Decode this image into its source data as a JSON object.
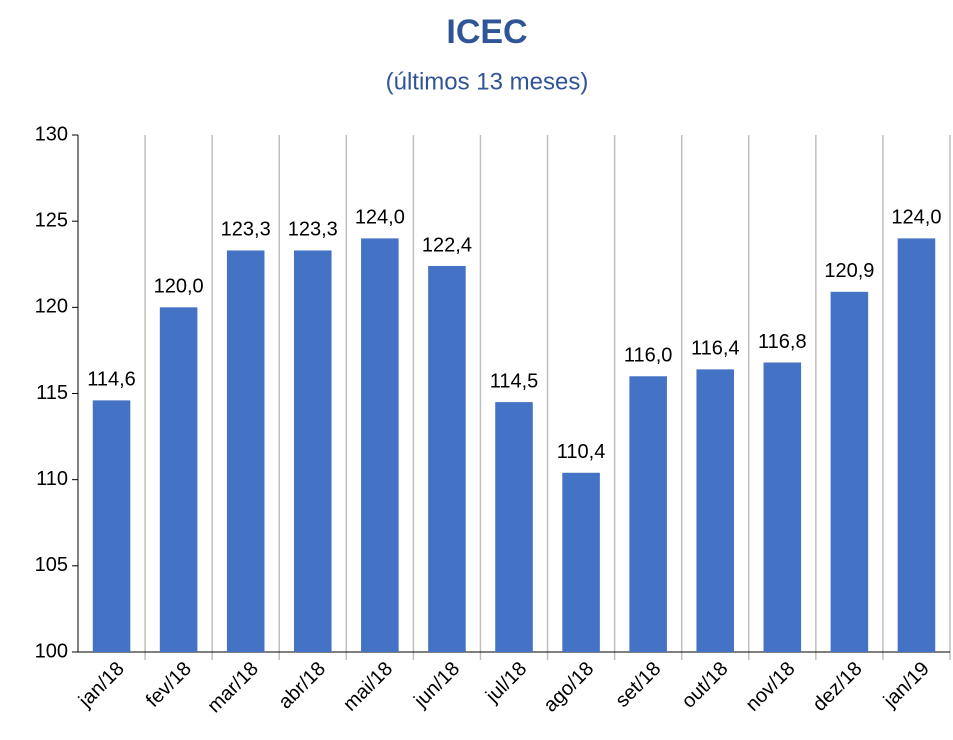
{
  "chart_data": {
    "type": "bar",
    "title": "ICEC",
    "subtitle": "(últimos 13 meses)",
    "categories": [
      "jan/18",
      "fev/18",
      "mar/18",
      "abr/18",
      "mai/18",
      "jun/18",
      "jul/18",
      "ago/18",
      "set/18",
      "out/18",
      "nov/18",
      "dez/18",
      "jan/19"
    ],
    "values": [
      114.6,
      120.0,
      123.3,
      123.3,
      124.0,
      122.4,
      114.5,
      110.4,
      116.0,
      116.4,
      116.8,
      120.9,
      124.0
    ],
    "value_labels": [
      "114,6",
      "120,0",
      "123,3",
      "123,3",
      "124,0",
      "122,4",
      "114,5",
      "110,4",
      "116,0",
      "116,4",
      "116,8",
      "120,9",
      "124,0"
    ],
    "color": "#4472c4",
    "ylim": [
      100,
      130
    ],
    "yticks": [
      100,
      105,
      110,
      115,
      120,
      125,
      130
    ],
    "grid": true
  }
}
